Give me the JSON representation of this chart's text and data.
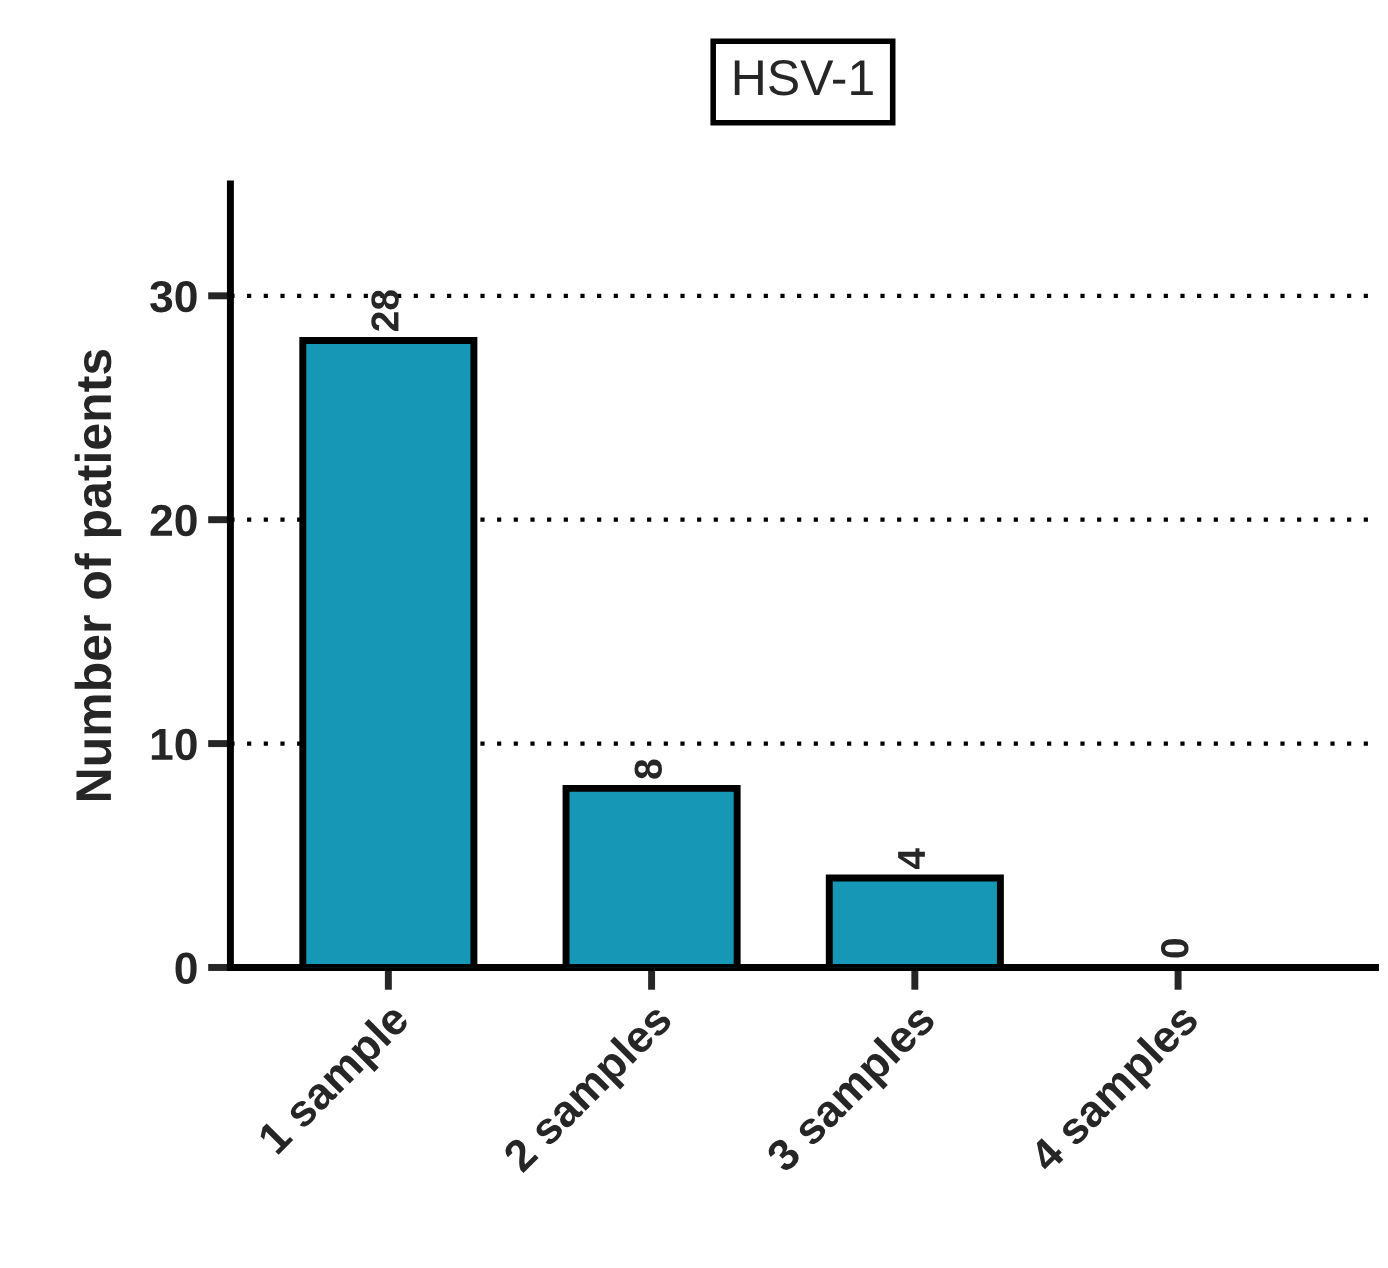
{
  "chart_data": {
    "type": "bar",
    "title": "HSV-1",
    "ylabel": "Number of patients",
    "categories": [
      "1 sample",
      "2 samples",
      "3 samples",
      "4 samples"
    ],
    "values": [
      28,
      8,
      4,
      0
    ],
    "color": "#1597b5",
    "ylim": [
      0,
      35
    ],
    "yticks": [
      0,
      10,
      20,
      30
    ],
    "grid": "y",
    "data_labels": true
  }
}
